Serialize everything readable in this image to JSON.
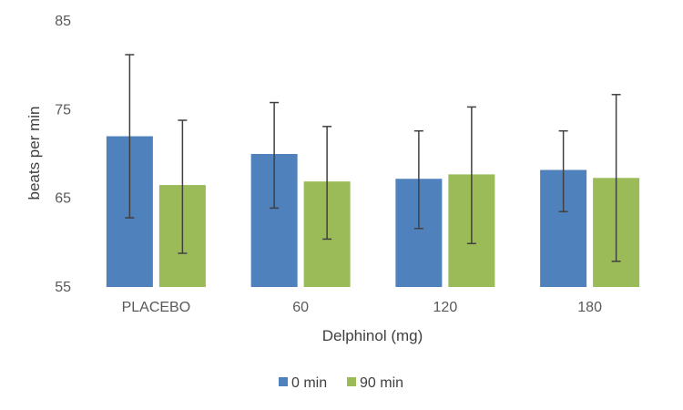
{
  "chart_data": {
    "type": "bar",
    "title": "",
    "xlabel": "Delphinol (mg)",
    "ylabel": "beats per min",
    "ylim": [
      55,
      85
    ],
    "yticks": [
      "55",
      "65",
      "75",
      "85"
    ],
    "categories": [
      "PLACEBO",
      "60",
      "120",
      "180"
    ],
    "series": [
      {
        "name": "0 min",
        "color": "#4f81bd",
        "values": [
          72.0,
          70.0,
          67.2,
          68.2
        ],
        "error_low": [
          62.8,
          63.9,
          61.6,
          63.5
        ],
        "error_high": [
          81.2,
          75.8,
          72.6,
          72.6
        ]
      },
      {
        "name": "90 min",
        "color": "#9bbb59",
        "values": [
          66.5,
          66.9,
          67.7,
          67.3
        ],
        "error_low": [
          58.8,
          60.4,
          59.9,
          57.9
        ],
        "error_high": [
          73.8,
          73.1,
          75.3,
          76.7
        ]
      }
    ],
    "grid": false,
    "legend_position": "bottom",
    "error_bar_color": "#404040"
  }
}
